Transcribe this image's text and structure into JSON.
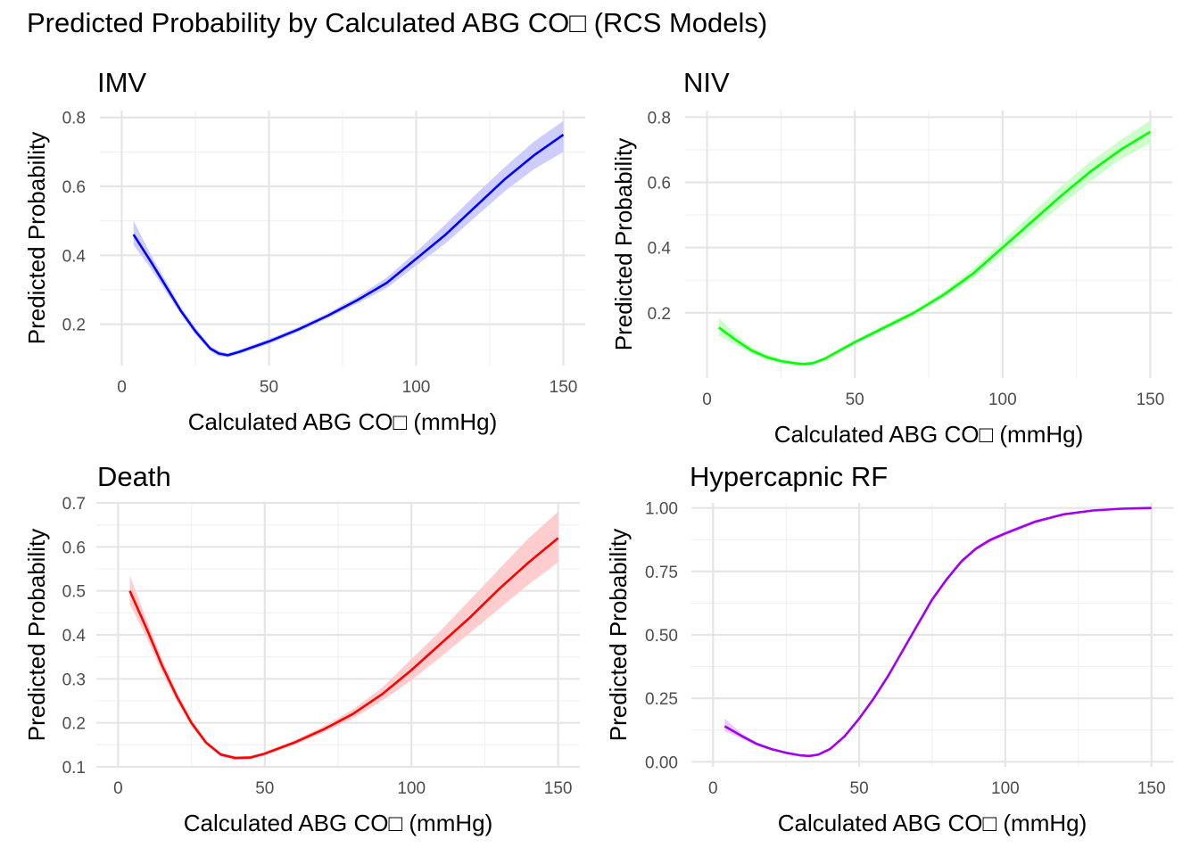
{
  "title": "Predicted Probability by Calculated ABG CO□ (RCS Models)",
  "chart_data": [
    {
      "type": "line",
      "title": "IMV",
      "xlabel": "Calculated ABG CO□ (mmHg)",
      "ylabel": "Predicted Probability",
      "xlim": [
        0,
        150
      ],
      "ylim": [
        0.08,
        0.82
      ],
      "x_ticks": [
        0,
        50,
        100,
        150
      ],
      "y_ticks": [
        0.2,
        0.4,
        0.6,
        0.8
      ],
      "y_tick_labels": [
        "0.2",
        "0.4",
        "0.6",
        "0.8"
      ],
      "color": "#0000ff",
      "band_color": "#c8c8ff",
      "grid": true,
      "x": [
        4,
        10,
        15,
        20,
        25,
        30,
        33,
        36,
        40,
        50,
        60,
        70,
        80,
        90,
        100,
        110,
        120,
        130,
        140,
        150
      ],
      "y": [
        0.46,
        0.38,
        0.31,
        0.24,
        0.18,
        0.13,
        0.115,
        0.11,
        0.12,
        0.15,
        0.185,
        0.225,
        0.27,
        0.32,
        0.39,
        0.46,
        0.54,
        0.62,
        0.69,
        0.75
      ],
      "lower": [
        0.43,
        0.36,
        0.295,
        0.23,
        0.17,
        0.123,
        0.107,
        0.104,
        0.114,
        0.143,
        0.178,
        0.218,
        0.26,
        0.305,
        0.37,
        0.435,
        0.51,
        0.585,
        0.65,
        0.7
      ],
      "upper": [
        0.5,
        0.4,
        0.325,
        0.25,
        0.19,
        0.137,
        0.122,
        0.116,
        0.126,
        0.157,
        0.192,
        0.232,
        0.28,
        0.335,
        0.41,
        0.49,
        0.575,
        0.655,
        0.73,
        0.79
      ]
    },
    {
      "type": "line",
      "title": "NIV",
      "xlabel": "Calculated ABG CO□ (mmHg)",
      "ylabel": "Predicted Probability",
      "xlim": [
        0,
        150
      ],
      "ylim": [
        0.0,
        0.82
      ],
      "x_ticks": [
        0,
        50,
        100,
        150
      ],
      "y_ticks": [
        0.2,
        0.4,
        0.6,
        0.8
      ],
      "y_tick_labels": [
        "0.2",
        "0.4",
        "0.6",
        "0.8"
      ],
      "color": "#00ff00",
      "band_color": "#c8ffc8",
      "grid": true,
      "x": [
        4,
        10,
        15,
        20,
        25,
        30,
        33,
        36,
        40,
        45,
        50,
        60,
        70,
        80,
        90,
        100,
        110,
        120,
        130,
        140,
        150
      ],
      "y": [
        0.155,
        0.115,
        0.085,
        0.065,
        0.052,
        0.045,
        0.043,
        0.046,
        0.06,
        0.085,
        0.11,
        0.155,
        0.2,
        0.255,
        0.32,
        0.4,
        0.48,
        0.56,
        0.635,
        0.7,
        0.755
      ],
      "lower": [
        0.13,
        0.1,
        0.075,
        0.057,
        0.045,
        0.039,
        0.038,
        0.041,
        0.054,
        0.078,
        0.103,
        0.147,
        0.192,
        0.245,
        0.305,
        0.38,
        0.455,
        0.53,
        0.605,
        0.67,
        0.72
      ],
      "upper": [
        0.185,
        0.13,
        0.095,
        0.073,
        0.059,
        0.051,
        0.048,
        0.051,
        0.066,
        0.092,
        0.117,
        0.163,
        0.208,
        0.265,
        0.335,
        0.42,
        0.505,
        0.59,
        0.665,
        0.73,
        0.79
      ]
    },
    {
      "type": "line",
      "title": "Death",
      "xlabel": "Calculated ABG CO□ (mmHg)",
      "ylabel": "Predicted Probability",
      "xlim": [
        0,
        150
      ],
      "ylim": [
        0.1,
        0.7
      ],
      "x_ticks": [
        0,
        50,
        100,
        150
      ],
      "y_ticks": [
        0.1,
        0.2,
        0.3,
        0.4,
        0.5,
        0.6,
        0.7
      ],
      "y_tick_labels": [
        "0.1",
        "0.2",
        "0.3",
        "0.4",
        "0.5",
        "0.6",
        "0.7"
      ],
      "color": "#ff0000",
      "band_color": "#ffc8c8",
      "grid": true,
      "x": [
        4,
        10,
        15,
        20,
        25,
        30,
        35,
        40,
        45,
        50,
        60,
        70,
        80,
        90,
        100,
        110,
        120,
        130,
        140,
        150
      ],
      "y": [
        0.5,
        0.41,
        0.33,
        0.26,
        0.2,
        0.155,
        0.128,
        0.12,
        0.121,
        0.13,
        0.155,
        0.185,
        0.22,
        0.265,
        0.32,
        0.38,
        0.44,
        0.505,
        0.565,
        0.62
      ],
      "lower": [
        0.47,
        0.39,
        0.315,
        0.25,
        0.192,
        0.15,
        0.124,
        0.116,
        0.117,
        0.126,
        0.15,
        0.178,
        0.21,
        0.25,
        0.297,
        0.35,
        0.405,
        0.46,
        0.515,
        0.565
      ],
      "upper": [
        0.535,
        0.43,
        0.345,
        0.27,
        0.208,
        0.16,
        0.132,
        0.124,
        0.125,
        0.134,
        0.16,
        0.192,
        0.23,
        0.28,
        0.345,
        0.41,
        0.48,
        0.55,
        0.62,
        0.68
      ]
    },
    {
      "type": "line",
      "title": "Hypercapnic RF",
      "xlabel": "Calculated ABG CO□ (mmHg)",
      "ylabel": "Predicted Probability",
      "xlim": [
        0,
        150
      ],
      "ylim": [
        -0.02,
        1.02
      ],
      "x_ticks": [
        0,
        50,
        100,
        150
      ],
      "y_ticks": [
        0,
        0.25,
        0.5,
        0.75,
        1.0
      ],
      "y_tick_labels": [
        "0.00",
        "0.25",
        "0.50",
        "0.75",
        "1.00"
      ],
      "color": "#a000f0",
      "band_color": "#e6c8ff",
      "grid": true,
      "x": [
        4,
        10,
        15,
        20,
        25,
        30,
        33,
        36,
        40,
        45,
        50,
        55,
        60,
        65,
        70,
        75,
        80,
        85,
        90,
        95,
        100,
        110,
        120,
        130,
        140,
        150
      ],
      "y": [
        0.14,
        0.1,
        0.07,
        0.05,
        0.035,
        0.025,
        0.023,
        0.028,
        0.05,
        0.1,
        0.17,
        0.25,
        0.34,
        0.44,
        0.54,
        0.64,
        0.72,
        0.79,
        0.84,
        0.875,
        0.9,
        0.945,
        0.975,
        0.99,
        0.997,
        1.0
      ],
      "lower": [
        0.12,
        0.09,
        0.063,
        0.045,
        0.031,
        0.022,
        0.02,
        0.025,
        0.046,
        0.094,
        0.163,
        0.242,
        0.332,
        0.432,
        0.532,
        0.632,
        0.712,
        0.782,
        0.832,
        0.867,
        0.892,
        0.938,
        0.97,
        0.987,
        0.995,
        0.999
      ],
      "upper": [
        0.17,
        0.11,
        0.077,
        0.055,
        0.039,
        0.028,
        0.026,
        0.031,
        0.054,
        0.106,
        0.177,
        0.258,
        0.348,
        0.448,
        0.548,
        0.648,
        0.728,
        0.798,
        0.848,
        0.883,
        0.908,
        0.952,
        0.98,
        0.993,
        0.999,
        1.0
      ]
    }
  ]
}
